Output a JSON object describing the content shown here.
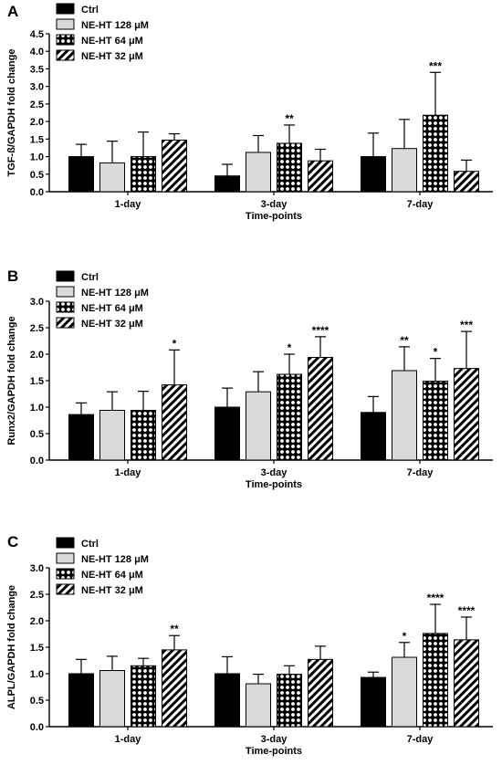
{
  "legend_colors": {
    "Ctrl": "#000000",
    "NE-HT 128 μM": "#d9d9d9",
    "NE-HT 64 μM": "crosshatch",
    "NE-HT 32 μM": "diagonal"
  },
  "chart_data": [
    {
      "panel": "A",
      "type": "bar",
      "ylabel": "TGF-ß/GAPDH fold change",
      "xlabel": "Time-points",
      "ylim": [
        0,
        4.5
      ],
      "yticks": [
        "0.0",
        "0.5",
        "1.0",
        "1.5",
        "2.0",
        "2.5",
        "3.0",
        "3.5",
        "4.0",
        "4.5"
      ],
      "categories": [
        "1-day",
        "3-day",
        "7-day"
      ],
      "series": [
        {
          "name": "Ctrl",
          "values": [
            1.0,
            0.45,
            1.0
          ],
          "errors": [
            0.35,
            0.33,
            0.67
          ],
          "sig": [
            "",
            "",
            ""
          ]
        },
        {
          "name": "NE-HT 128 μM",
          "values": [
            0.82,
            1.12,
            1.23
          ],
          "errors": [
            0.62,
            0.48,
            0.83
          ],
          "sig": [
            "",
            "",
            ""
          ]
        },
        {
          "name": "NE-HT 64 μM",
          "values": [
            1.0,
            1.38,
            2.18
          ],
          "errors": [
            0.7,
            0.52,
            1.22
          ],
          "sig": [
            "",
            "**",
            "***"
          ]
        },
        {
          "name": "NE-HT 32 μM",
          "values": [
            1.47,
            0.88,
            0.58
          ],
          "errors": [
            0.18,
            0.33,
            0.32
          ],
          "sig": [
            "",
            "",
            ""
          ]
        }
      ]
    },
    {
      "panel": "B",
      "type": "bar",
      "ylabel": "Runx2/GAPDH fold change",
      "xlabel": "Time-points",
      "ylim": [
        0,
        3.0
      ],
      "yticks": [
        "0.0",
        "0.5",
        "1.0",
        "1.5",
        "2.0",
        "2.5",
        "3.0"
      ],
      "categories": [
        "1-day",
        "3-day",
        "7-day"
      ],
      "series": [
        {
          "name": "Ctrl",
          "values": [
            0.86,
            1.0,
            0.9
          ],
          "errors": [
            0.22,
            0.36,
            0.3
          ],
          "sig": [
            "",
            "",
            ""
          ]
        },
        {
          "name": "NE-HT 128 μM",
          "values": [
            0.94,
            1.29,
            1.69
          ],
          "errors": [
            0.35,
            0.38,
            0.45
          ],
          "sig": [
            "",
            "",
            "**"
          ]
        },
        {
          "name": "NE-HT 64 μM",
          "values": [
            0.94,
            1.62,
            1.49
          ],
          "errors": [
            0.36,
            0.38,
            0.43
          ],
          "sig": [
            "",
            "*",
            "*"
          ]
        },
        {
          "name": "NE-HT 32 μM",
          "values": [
            1.42,
            1.94,
            1.73
          ],
          "errors": [
            0.66,
            0.39,
            0.7
          ],
          "sig": [
            "*",
            "****",
            "***"
          ]
        }
      ]
    },
    {
      "panel": "C",
      "type": "bar",
      "ylabel": "ALPL/GAPDH fold change",
      "xlabel": "Time-points",
      "ylim": [
        0,
        3.0
      ],
      "yticks": [
        "0.0",
        "0.5",
        "1.0",
        "1.5",
        "2.0",
        "2.5",
        "3.0"
      ],
      "categories": [
        "1-day",
        "3-day",
        "7-day"
      ],
      "series": [
        {
          "name": "Ctrl",
          "values": [
            1.0,
            1.0,
            0.93
          ],
          "errors": [
            0.27,
            0.32,
            0.1
          ],
          "sig": [
            "",
            "",
            ""
          ]
        },
        {
          "name": "NE-HT 128 μM",
          "values": [
            1.06,
            0.81,
            1.31
          ],
          "errors": [
            0.27,
            0.18,
            0.28
          ],
          "sig": [
            "",
            "",
            "*"
          ]
        },
        {
          "name": "NE-HT 64 μM",
          "values": [
            1.15,
            0.99,
            1.76
          ],
          "errors": [
            0.14,
            0.16,
            0.55
          ],
          "sig": [
            "",
            "",
            "****"
          ]
        },
        {
          "name": "NE-HT 32 μM",
          "values": [
            1.45,
            1.27,
            1.64
          ],
          "errors": [
            0.27,
            0.25,
            0.43
          ],
          "sig": [
            "**",
            "",
            "****"
          ]
        }
      ]
    }
  ]
}
